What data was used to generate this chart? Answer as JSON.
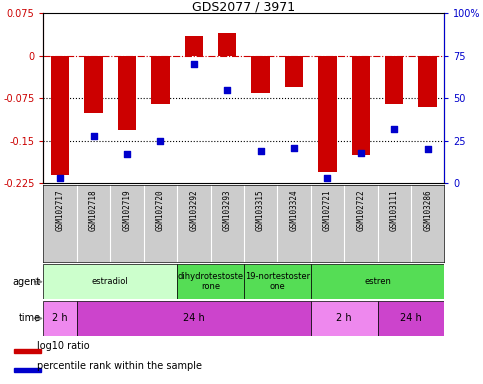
{
  "title": "GDS2077 / 3971",
  "samples": [
    "GSM102717",
    "GSM102718",
    "GSM102719",
    "GSM102720",
    "GSM103292",
    "GSM103293",
    "GSM103315",
    "GSM103324",
    "GSM102721",
    "GSM102722",
    "GSM103111",
    "GSM103286"
  ],
  "log10_ratio": [
    -0.21,
    -0.1,
    -0.13,
    -0.085,
    0.035,
    0.04,
    -0.065,
    -0.055,
    -0.205,
    -0.175,
    -0.085,
    -0.09
  ],
  "percentile": [
    3,
    28,
    17,
    25,
    70,
    55,
    19,
    21,
    3,
    18,
    32,
    20
  ],
  "ylim_left": [
    -0.225,
    0.075
  ],
  "ylim_right": [
    0,
    100
  ],
  "yticks_left": [
    -0.225,
    -0.15,
    -0.075,
    0,
    0.075
  ],
  "yticks_right": [
    0,
    25,
    50,
    75,
    100
  ],
  "bar_color": "#cc0000",
  "scatter_color": "#0000cc",
  "dashed_line_color": "#cc0000",
  "dotted_line_color": "#000000",
  "agent_groups": [
    {
      "label": "estradiol",
      "start": 0,
      "end": 4,
      "color": "#ccffcc"
    },
    {
      "label": "dihydrotestoste\nrone",
      "start": 4,
      "end": 6,
      "color": "#55dd55"
    },
    {
      "label": "19-nortestoster\none",
      "start": 6,
      "end": 8,
      "color": "#55dd55"
    },
    {
      "label": "estren",
      "start": 8,
      "end": 12,
      "color": "#55dd55"
    }
  ],
  "time_groups": [
    {
      "label": "2 h",
      "start": 0,
      "end": 1,
      "color": "#ee88ee"
    },
    {
      "label": "24 h",
      "start": 1,
      "end": 8,
      "color": "#cc44cc"
    },
    {
      "label": "2 h",
      "start": 8,
      "end": 10,
      "color": "#ee88ee"
    },
    {
      "label": "24 h",
      "start": 10,
      "end": 12,
      "color": "#cc44cc"
    }
  ],
  "legend_red_label": "log10 ratio",
  "legend_blue_label": "percentile rank within the sample",
  "bg_color": "#ffffff",
  "xlabel_bg": "#cccccc"
}
